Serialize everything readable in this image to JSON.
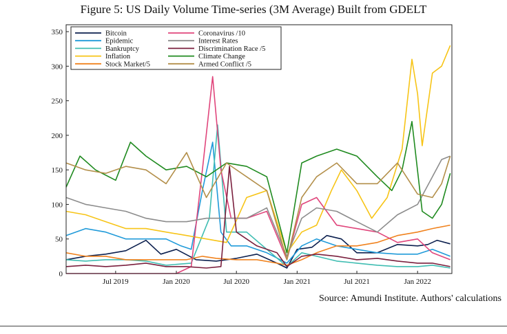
{
  "figure": {
    "title": "Figure 5: US Daily Volume Time-series (3M Average) Built from GDELT",
    "source": "Source: Amundi Institute. Authors' calculations"
  },
  "chart_data": {
    "type": "line",
    "title": "",
    "xlabel": "",
    "ylabel": "",
    "ylim": [
      0,
      360
    ],
    "xlim": [
      "2019-02-01",
      "2022-04-15"
    ],
    "y_ticks": [
      0,
      50,
      100,
      150,
      200,
      250,
      300,
      350
    ],
    "x_ticks": [
      {
        "date": "2019-07-01",
        "label": "Jul 2019"
      },
      {
        "date": "2020-01-01",
        "label": "Jan 2020"
      },
      {
        "date": "2020-07-01",
        "label": "Jul 2020"
      },
      {
        "date": "2021-01-01",
        "label": "Jan 2021"
      },
      {
        "date": "2021-07-01",
        "label": "Jul 2021"
      },
      {
        "date": "2022-01-01",
        "label": "Jan 2022"
      }
    ],
    "grid": false,
    "legend": "top-left, two columns",
    "series": [
      {
        "name": "Bitcoin",
        "color": "#0b1f4e",
        "x": [
          "2019-02-01",
          "2019-04-01",
          "2019-06-01",
          "2019-08-01",
          "2019-10-01",
          "2019-11-15",
          "2020-01-01",
          "2020-03-01",
          "2020-05-01",
          "2020-07-01",
          "2020-09-01",
          "2020-11-01",
          "2020-12-01",
          "2021-01-01",
          "2021-02-15",
          "2021-04-01",
          "2021-05-15",
          "2021-07-01",
          "2021-09-01",
          "2021-11-01",
          "2022-01-01",
          "2022-02-01",
          "2022-03-01",
          "2022-04-10"
        ],
        "y": [
          20,
          25,
          28,
          33,
          48,
          28,
          35,
          20,
          18,
          22,
          28,
          15,
          8,
          35,
          38,
          55,
          50,
          30,
          30,
          42,
          40,
          42,
          48,
          43
        ]
      },
      {
        "name": "Epidemic",
        "color": "#1f9ad9",
        "x": [
          "2019-02-01",
          "2019-04-01",
          "2019-06-01",
          "2019-08-01",
          "2019-10-01",
          "2019-12-01",
          "2020-01-15",
          "2020-02-15",
          "2020-03-20",
          "2020-04-20",
          "2020-05-15",
          "2020-06-15",
          "2020-08-01",
          "2020-10-01",
          "2020-12-01",
          "2021-01-15",
          "2021-03-01",
          "2021-05-01",
          "2021-07-01",
          "2021-09-01",
          "2021-11-01",
          "2022-01-01",
          "2022-02-15",
          "2022-04-10"
        ],
        "y": [
          55,
          65,
          60,
          50,
          50,
          50,
          40,
          35,
          120,
          190,
          60,
          40,
          40,
          30,
          15,
          40,
          50,
          40,
          35,
          30,
          28,
          28,
          35,
          25
        ]
      },
      {
        "name": "Bankruptcy",
        "color": "#3fbdb2",
        "x": [
          "2019-02-01",
          "2019-04-01",
          "2019-06-01",
          "2019-08-01",
          "2019-10-01",
          "2019-12-01",
          "2020-02-15",
          "2020-04-10",
          "2020-05-05",
          "2020-06-01",
          "2020-08-01",
          "2020-10-01",
          "2020-12-01",
          "2021-01-15",
          "2021-03-01",
          "2021-05-01",
          "2021-07-01",
          "2021-09-01",
          "2021-11-01",
          "2022-01-01",
          "2022-02-15",
          "2022-04-10"
        ],
        "y": [
          20,
          18,
          20,
          20,
          18,
          12,
          15,
          80,
          215,
          60,
          60,
          35,
          10,
          30,
          25,
          18,
          15,
          12,
          10,
          10,
          12,
          8
        ]
      },
      {
        "name": "Inflation",
        "color": "#f7c416",
        "x": [
          "2019-02-01",
          "2019-04-01",
          "2019-06-01",
          "2019-08-01",
          "2019-10-01",
          "2019-12-01",
          "2020-02-01",
          "2020-04-01",
          "2020-06-01",
          "2020-08-01",
          "2020-10-01",
          "2020-12-01",
          "2021-01-15",
          "2021-03-01",
          "2021-04-15",
          "2021-05-15",
          "2021-07-01",
          "2021-08-15",
          "2021-10-01",
          "2021-11-15",
          "2021-12-15",
          "2022-01-01",
          "2022-01-15",
          "2022-02-15",
          "2022-03-15",
          "2022-04-10"
        ],
        "y": [
          90,
          85,
          75,
          65,
          65,
          60,
          55,
          50,
          45,
          110,
          120,
          30,
          60,
          70,
          120,
          150,
          120,
          80,
          110,
          180,
          310,
          260,
          185,
          290,
          300,
          330
        ]
      },
      {
        "name": "Stock Market/5",
        "color": "#f0821e",
        "x": [
          "2019-02-01",
          "2019-04-01",
          "2019-06-01",
          "2019-08-01",
          "2019-10-01",
          "2019-12-01",
          "2020-02-01",
          "2020-03-20",
          "2020-05-01",
          "2020-07-01",
          "2020-09-01",
          "2020-11-01",
          "2020-12-01",
          "2021-01-15",
          "2021-03-01",
          "2021-05-01",
          "2021-07-01",
          "2021-09-01",
          "2021-11-01",
          "2022-01-01",
          "2022-02-15",
          "2022-04-10"
        ],
        "y": [
          30,
          25,
          25,
          20,
          20,
          20,
          20,
          25,
          22,
          20,
          20,
          15,
          12,
          20,
          30,
          40,
          40,
          45,
          55,
          60,
          65,
          70
        ]
      },
      {
        "name": "Coronavirus /10",
        "color": "#e0457b",
        "x": [
          "2019-02-01",
          "2019-10-01",
          "2020-01-01",
          "2020-02-15",
          "2020-03-20",
          "2020-04-20",
          "2020-05-15",
          "2020-06-15",
          "2020-08-01",
          "2020-10-01",
          "2020-12-01",
          "2021-01-15",
          "2021-03-01",
          "2021-05-01",
          "2021-07-01",
          "2021-09-01",
          "2021-11-01",
          "2022-01-01",
          "2022-02-15",
          "2022-04-10"
        ],
        "y": [
          0,
          0,
          0,
          10,
          150,
          285,
          150,
          80,
          80,
          90,
          20,
          100,
          110,
          70,
          65,
          60,
          45,
          50,
          30,
          20
        ]
      },
      {
        "name": "Interest Rates",
        "color": "#8c8c8c",
        "x": [
          "2019-02-01",
          "2019-04-01",
          "2019-06-01",
          "2019-08-01",
          "2019-10-01",
          "2019-12-01",
          "2020-02-01",
          "2020-04-01",
          "2020-06-01",
          "2020-08-01",
          "2020-10-01",
          "2020-12-01",
          "2021-01-15",
          "2021-03-01",
          "2021-05-01",
          "2021-07-01",
          "2021-09-01",
          "2021-11-01",
          "2022-01-01",
          "2022-02-15",
          "2022-03-15",
          "2022-04-10"
        ],
        "y": [
          110,
          100,
          95,
          90,
          80,
          75,
          75,
          80,
          80,
          80,
          95,
          25,
          80,
          95,
          90,
          75,
          60,
          85,
          100,
          140,
          165,
          170
        ]
      },
      {
        "name": "Discrimination Race /5",
        "color": "#7a1f3d",
        "x": [
          "2019-02-01",
          "2019-04-01",
          "2019-06-01",
          "2019-08-01",
          "2019-10-01",
          "2019-12-01",
          "2020-02-01",
          "2020-04-01",
          "2020-05-15",
          "2020-06-10",
          "2020-07-01",
          "2020-09-01",
          "2020-11-01",
          "2020-12-01",
          "2021-01-15",
          "2021-03-01",
          "2021-05-01",
          "2021-07-01",
          "2021-09-01",
          "2021-11-01",
          "2022-01-01",
          "2022-02-15",
          "2022-04-10"
        ],
        "y": [
          10,
          12,
          10,
          12,
          15,
          10,
          10,
          8,
          10,
          155,
          60,
          40,
          30,
          10,
          25,
          28,
          25,
          20,
          22,
          18,
          15,
          15,
          10
        ]
      },
      {
        "name": "Climate Change",
        "color": "#1f8a1f",
        "x": [
          "2019-02-01",
          "2019-03-15",
          "2019-05-01",
          "2019-07-01",
          "2019-08-15",
          "2019-10-01",
          "2019-12-01",
          "2020-02-01",
          "2020-04-01",
          "2020-06-01",
          "2020-08-01",
          "2020-10-01",
          "2020-12-01",
          "2021-01-15",
          "2021-03-01",
          "2021-05-01",
          "2021-07-01",
          "2021-09-01",
          "2021-10-15",
          "2021-11-15",
          "2021-12-15",
          "2022-01-15",
          "2022-02-15",
          "2022-03-15",
          "2022-04-10"
        ],
        "y": [
          125,
          170,
          150,
          135,
          190,
          170,
          150,
          155,
          140,
          160,
          155,
          140,
          30,
          160,
          170,
          180,
          170,
          140,
          120,
          150,
          220,
          90,
          80,
          100,
          145
        ]
      },
      {
        "name": "Armed Conflict /5",
        "color": "#b38f4a",
        "x": [
          "2019-02-01",
          "2019-04-01",
          "2019-06-01",
          "2019-08-01",
          "2019-10-01",
          "2019-12-01",
          "2020-02-01",
          "2020-04-01",
          "2020-06-01",
          "2020-08-01",
          "2020-10-01",
          "2020-12-01",
          "2021-01-15",
          "2021-03-01",
          "2021-05-01",
          "2021-07-01",
          "2021-09-01",
          "2021-11-01",
          "2022-01-01",
          "2022-02-15",
          "2022-03-15",
          "2022-04-10"
        ],
        "y": [
          160,
          150,
          145,
          155,
          150,
          130,
          175,
          110,
          160,
          140,
          120,
          20,
          110,
          140,
          160,
          130,
          130,
          160,
          115,
          110,
          130,
          170
        ]
      }
    ]
  }
}
